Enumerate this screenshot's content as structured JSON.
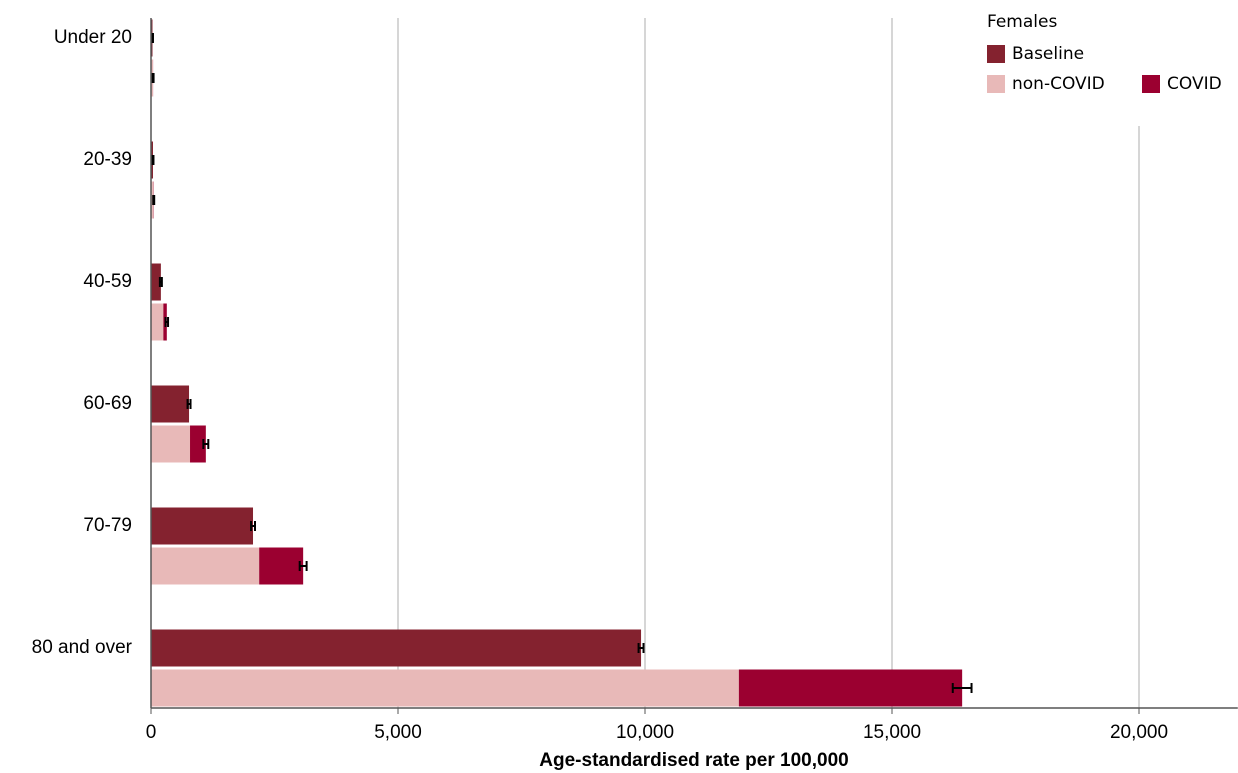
{
  "chart_data": {
    "type": "bar",
    "x_label": "Age-standardised rate per 100,000",
    "legend_title": "Females",
    "legend": "top-right",
    "categories": [
      "Under 20",
      "20-39",
      "40-59",
      "60-69",
      "70-79",
      "80 and over"
    ],
    "series": [
      {
        "name": "Baseline",
        "color": "#84222f",
        "values": [
          30,
          40,
          200,
          770,
          2065,
          9920
        ],
        "errors": [
          10,
          10,
          20,
          30,
          40,
          50
        ]
      },
      {
        "name": "non-COVID",
        "color": "#e8b9b8",
        "values": [
          40,
          50,
          250,
          790,
          2190,
          11900
        ]
      },
      {
        "name": "COVID",
        "color": "#9b0030",
        "values": [
          2,
          5,
          70,
          320,
          890,
          4520
        ],
        "errors": [
          10,
          10,
          25,
          50,
          70,
          190
        ]
      }
    ],
    "xlim": [
      0,
      22000
    ],
    "xticks": [
      0,
      {
        "value": 5000,
        "label": "5,000"
      },
      {
        "value": 10000,
        "label": "10,000"
      },
      {
        "value": 15000,
        "label": "15,000"
      },
      {
        "value": 20000,
        "label": "20,000"
      }
    ],
    "grid": true
  }
}
